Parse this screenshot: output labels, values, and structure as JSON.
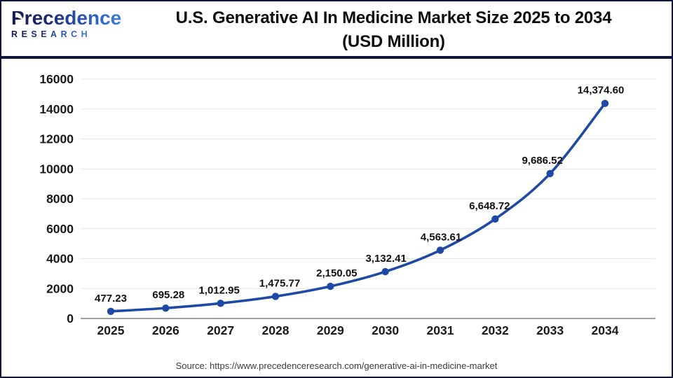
{
  "header": {
    "logo": {
      "name": "Precedence",
      "sub": "RESEARCH"
    },
    "title_line1": "U.S. Generative AI In Medicine Market Size 2025 to 2034",
    "title_line2": "(USD Million)"
  },
  "chart_data": {
    "type": "line",
    "title": "U.S. Generative AI In Medicine Market Size 2025 to 2034 (USD Million)",
    "categories": [
      "2025",
      "2026",
      "2027",
      "2028",
      "2029",
      "2030",
      "2031",
      "2032",
      "2033",
      "2034"
    ],
    "series": [
      {
        "name": "U.S. Generative AI In Medicine Market Size (USD Million)",
        "values": [
          477.23,
          695.28,
          1012.95,
          1475.77,
          2150.05,
          3132.41,
          4563.61,
          6648.72,
          9686.52,
          14374.6
        ],
        "value_labels": [
          "477.23",
          "695.28",
          "1,012.95",
          "1,475.77",
          "2,150.05",
          "3,132.41",
          "4,563.61",
          "6,648.72",
          "9,686.52",
          "14,374.60"
        ]
      }
    ],
    "xlabel": "",
    "ylabel": "",
    "ylim": [
      0,
      16000
    ],
    "yticks": [
      0,
      2000,
      4000,
      6000,
      8000,
      10000,
      12000,
      14000,
      16000
    ],
    "grid": "horizontal",
    "legend": "none",
    "colors": {
      "line": "#1e49a5",
      "marker": "#1e49a5",
      "gridline": "#e5e5e5",
      "axis_line": "#a0a0a0",
      "tick_label": "#1a1a1a",
      "data_label": "#111111",
      "header_rule": "#10153a"
    }
  },
  "footer": {
    "source": "Source: https://www.precedenceresearch.com/generative-ai-in-medicine-market"
  }
}
